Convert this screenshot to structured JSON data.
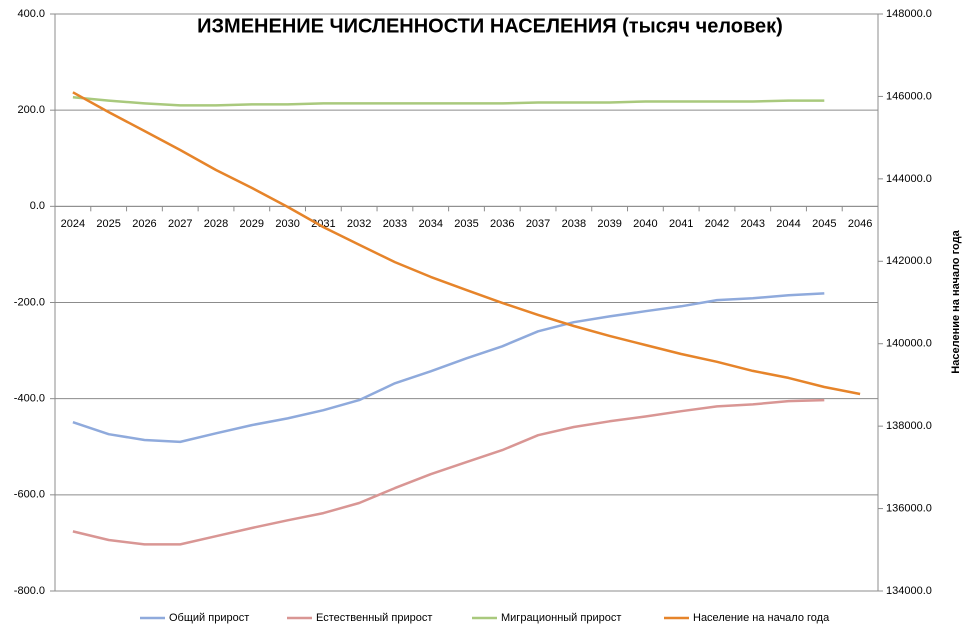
{
  "chart_data": {
    "type": "line",
    "title": "ИЗМЕНЕНИЕ ЧИСЛЕННОСТИ НАСЕЛЕНИЯ (тысяч человек)",
    "y2label": "Население на начало года",
    "categories": [
      "2024",
      "2025",
      "2026",
      "2027",
      "2028",
      "2029",
      "2030",
      "2031",
      "2032",
      "2033",
      "2034",
      "2035",
      "2036",
      "2037",
      "2038",
      "2039",
      "2040",
      "2041",
      "2042",
      "2043",
      "2044",
      "2045",
      "2046"
    ],
    "series": [
      {
        "name": "Общий прирост",
        "color": "#8faadc",
        "axis": "y",
        "values": [
          -449,
          -474,
          -486,
          -490,
          -472,
          -455,
          -441,
          -424,
          -403,
          -368,
          -343,
          -316,
          -291,
          -260,
          -241,
          -229,
          -218,
          -208,
          -195,
          -191,
          -185,
          -181,
          null
        ]
      },
      {
        "name": "Естественный  прирост",
        "color": "#d99694",
        "axis": "y",
        "values": [
          -676,
          -694,
          -703,
          -703,
          -686,
          -669,
          -653,
          -638,
          -617,
          -586,
          -557,
          -532,
          -507,
          -476,
          -459,
          -447,
          -437,
          -426,
          -416,
          -412,
          -405,
          -403,
          null
        ]
      },
      {
        "name": "Миграционный прирост",
        "color": "#a9c97d",
        "axis": "y",
        "values": [
          227,
          220,
          214,
          210,
          210,
          212,
          212,
          214,
          214,
          214,
          214,
          214,
          214,
          216,
          216,
          216,
          218,
          218,
          218,
          218,
          220,
          220,
          null
        ]
      },
      {
        "name": "Население на начало года",
        "color": "#e6842a",
        "axis": "y2",
        "values": [
          146100,
          145620,
          145160,
          144700,
          144215,
          143780,
          143320,
          142830,
          142400,
          141980,
          141620,
          141300,
          140990,
          140700,
          140430,
          140190,
          139970,
          139750,
          139560,
          139340,
          139170,
          138950,
          138780
        ]
      }
    ],
    "ylim": [
      -800,
      400
    ],
    "yticks": [
      {
        "value": -800,
        "label": "-800.0"
      },
      {
        "value": -600,
        "label": "-600.0"
      },
      {
        "value": -400,
        "label": "-400.0"
      },
      {
        "value": -200,
        "label": "-200.0"
      },
      {
        "value": 0,
        "label": "0.0"
      },
      {
        "value": 200,
        "label": "200.0"
      },
      {
        "value": 400,
        "label": "400.0"
      }
    ],
    "y2lim": [
      134000,
      148000
    ],
    "y2ticks": [
      {
        "value": 134000,
        "label": "134000.0"
      },
      {
        "value": 136000,
        "label": "136000.0"
      },
      {
        "value": 138000,
        "label": "138000.0"
      },
      {
        "value": 140000,
        "label": "140000.0"
      },
      {
        "value": 142000,
        "label": "142000.0"
      },
      {
        "value": 144000,
        "label": "144000.0"
      },
      {
        "value": 146000,
        "label": "146000.0"
      },
      {
        "value": 148000,
        "label": "148000.0"
      }
    ],
    "grid": true,
    "legend": "bottom"
  }
}
